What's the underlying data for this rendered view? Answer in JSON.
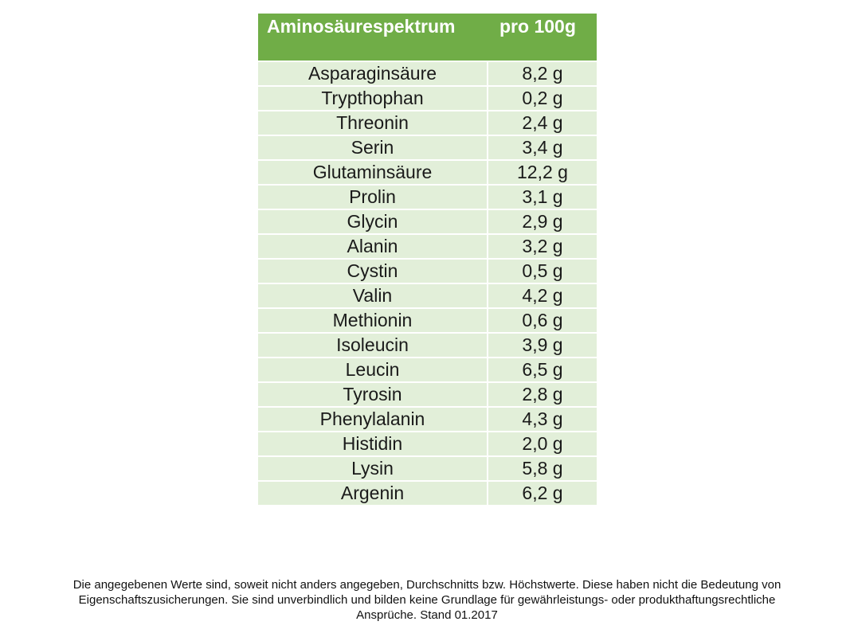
{
  "table": {
    "header": {
      "col1": "Aminosäurespektrum",
      "col2": "pro 100g"
    },
    "colors": {
      "header_bg": "#70ad47",
      "row_bg": "#e2efd9"
    },
    "rows": [
      {
        "name": "Asparaginsäure",
        "value": "8,2 g"
      },
      {
        "name": "Trypthophan",
        "value": "0,2 g"
      },
      {
        "name": "Threonin",
        "value": "2,4 g"
      },
      {
        "name": "Serin",
        "value": "3,4 g"
      },
      {
        "name": "Glutaminsäure",
        "value": "12,2 g"
      },
      {
        "name": "Prolin",
        "value": "3,1 g"
      },
      {
        "name": "Glycin",
        "value": "2,9 g"
      },
      {
        "name": "Alanin",
        "value": "3,2 g"
      },
      {
        "name": "Cystin",
        "value": "0,5 g"
      },
      {
        "name": "Valin",
        "value": "4,2 g"
      },
      {
        "name": "Methionin",
        "value": "0,6 g"
      },
      {
        "name": "Isoleucin",
        "value": "3,9 g"
      },
      {
        "name": "Leucin",
        "value": "6,5 g"
      },
      {
        "name": "Tyrosin",
        "value": "2,8 g"
      },
      {
        "name": "Phenylalanin",
        "value": "4,3 g"
      },
      {
        "name": "Histidin",
        "value": "2,0 g"
      },
      {
        "name": "Lysin",
        "value": "5,8 g"
      },
      {
        "name": "Argenin",
        "value": "6,2 g"
      }
    ]
  },
  "footer": {
    "line1": "Die angegebenen Werte sind, soweit nicht anders angegeben, Durchschnitts bzw. Höchstwerte. Diese haben nicht die Bedeutung von",
    "line2": "Eigenschaftszusicherungen. Sie sind unverbindlich und bilden keine Grundlage für gewährleistungs- oder produkthaftungsrechtliche",
    "line3": "Ansprüche. Stand 01.2017"
  }
}
